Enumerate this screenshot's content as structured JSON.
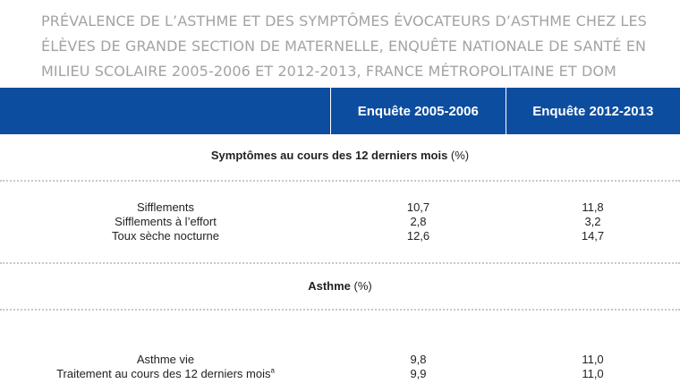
{
  "title": "PRÉVALENCE DE L’ASTHME ET DES SYMPTÔMES ÉVOCATEURS D’ASTHME CHEZ LES ÉLÈVES DE GRANDE SECTION DE MATERNELLE, ENQUÊTE NATIONALE DE SANTÉ EN MILIEU SCOLAIRE 2005-2006 ET 2012-2013, FRANCE MÉTROPOLITAINE ET DOM",
  "header": {
    "col0": "",
    "col1": "Enquête 2005-2006",
    "col2": "Enquête 2012-2013"
  },
  "sections": [
    {
      "title_bold": "Symptômes au cours des 12 derniers mois",
      "title_unit": " (%)",
      "rows": [
        {
          "label": "Sifflements",
          "v1": "10,7",
          "v2": "11,8"
        },
        {
          "label": "Sifflements à l’effort",
          "v1": "2,8",
          "v2": "3,2"
        },
        {
          "label": "Toux sèche nocturne",
          "v1": "12,6",
          "v2": "14,7"
        }
      ]
    },
    {
      "title_bold": "Asthme",
      "title_unit": " (%)",
      "rows": [
        {
          "label": "Asthme vie",
          "v1": "9,8",
          "v2": "11,0"
        },
        {
          "label": "Traitement au cours des 12 derniers mois",
          "sup": "a",
          "v1": "9,9",
          "v2": "11,0"
        }
      ]
    }
  ]
}
